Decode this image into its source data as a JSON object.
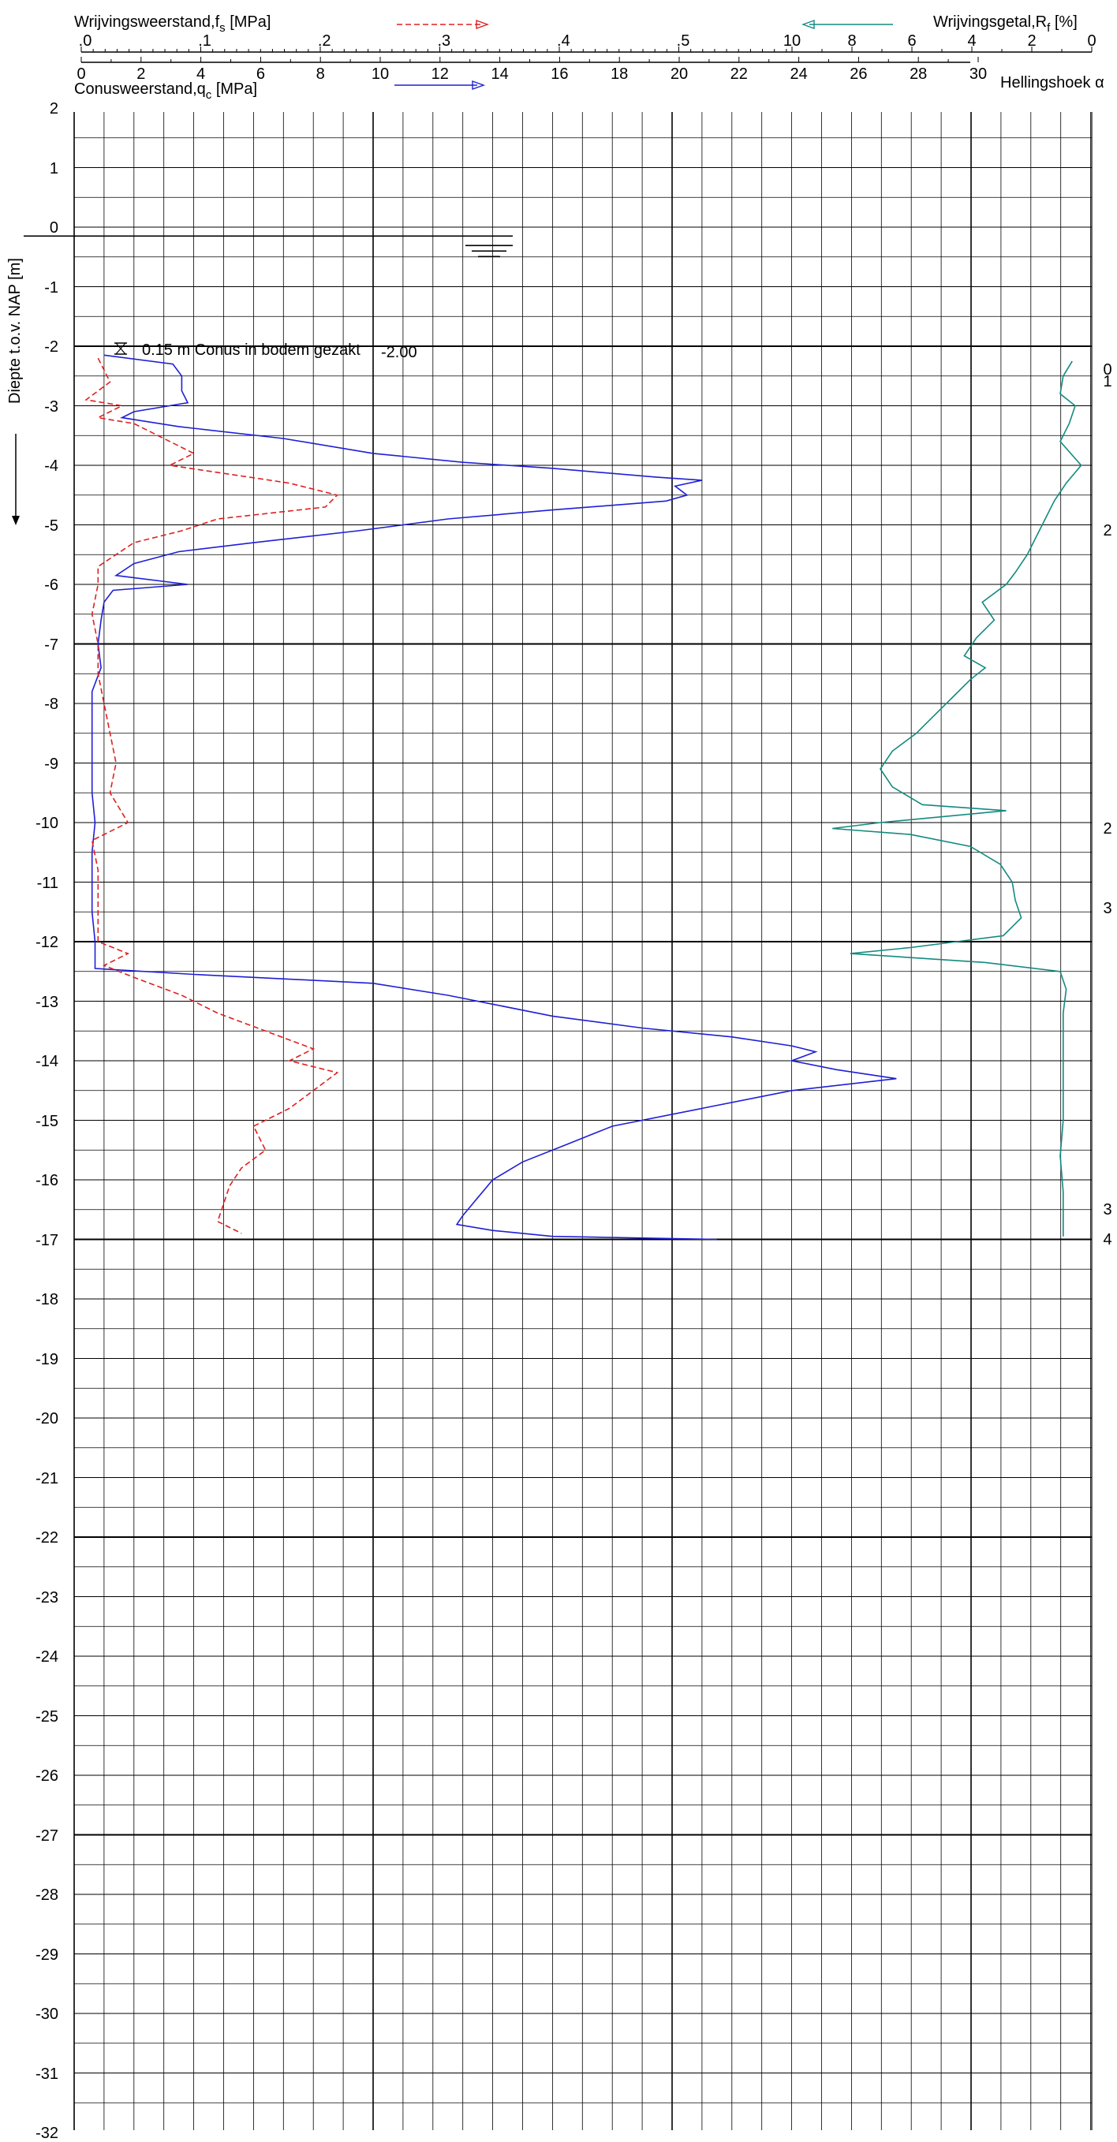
{
  "chart_data": {
    "type": "line",
    "y_axis": {
      "label": "Diepte t.o.v. NAP [m]",
      "range": [
        -32,
        2
      ],
      "ticks": [
        2,
        1,
        0,
        -1,
        -2,
        -3,
        -4,
        -5,
        -6,
        -7,
        -8,
        -9,
        -10,
        -11,
        -12,
        -13,
        -14,
        -15,
        -16,
        -17,
        -18,
        -19,
        -20,
        -21,
        -22,
        -23,
        -24,
        -25,
        -26,
        -27,
        -28,
        -29,
        -30,
        -31,
        -32
      ]
    },
    "x_axis_qc": {
      "label": "Conusweerstand,q",
      "label_sub": "c",
      "unit": " [MPa]",
      "range": [
        0,
        34
      ],
      "ticks": [
        0,
        2,
        4,
        6,
        8,
        10,
        12,
        14,
        16,
        18,
        20,
        22,
        24,
        26,
        28,
        30
      ]
    },
    "x_axis_fs": {
      "label": "Wrijvingsweerstand,f",
      "label_sub": "s",
      "unit": " [MPa]",
      "range": [
        0,
        0.85
      ],
      "ticks": [
        ".0",
        ".1",
        ".2",
        ".3",
        ".4",
        ".5"
      ],
      "tick_values": [
        0,
        0.1,
        0.2,
        0.3,
        0.4,
        0.5
      ]
    },
    "x_axis_rf": {
      "label": "Wrijvingsgetal,R",
      "label_sub": "f",
      "unit": " [%]",
      "range_reversed": [
        0,
        10
      ],
      "ticks": [
        "10",
        "8",
        "6",
        "4",
        "2",
        "0"
      ],
      "tick_values": [
        10,
        8,
        6,
        4,
        2,
        0
      ]
    },
    "angle_label": "Hellingshoek α",
    "groundwater_level": -0.15,
    "annotation": {
      "text": "0.15  m Conus in bodem gezakt",
      "value_text": "-2.00",
      "depth": -2.0
    },
    "angle_markers": [
      {
        "depth": -2.4,
        "value": "0"
      },
      {
        "depth": -2.6,
        "value": "1"
      },
      {
        "depth": -5.1,
        "value": "2"
      },
      {
        "depth": -10.1,
        "value": "2"
      },
      {
        "depth": -11.45,
        "value": "3"
      },
      {
        "depth": -16.5,
        "value": "3"
      },
      {
        "depth": -17.0,
        "value": "4"
      }
    ],
    "series": [
      {
        "name": "Conusweerstand q_c",
        "color": "#1f1fd6",
        "style": "solid",
        "axis": "qc",
        "points": [
          [
            -2.15,
            1.0
          ],
          [
            -2.3,
            3.3
          ],
          [
            -2.5,
            3.6
          ],
          [
            -2.75,
            3.6
          ],
          [
            -2.95,
            3.8
          ],
          [
            -3.1,
            2.0
          ],
          [
            -3.2,
            1.6
          ],
          [
            -3.35,
            3.5
          ],
          [
            -3.55,
            7.0
          ],
          [
            -3.8,
            10.0
          ],
          [
            -3.95,
            13.0
          ],
          [
            -4.05,
            16.0
          ],
          [
            -4.2,
            19.5
          ],
          [
            -4.25,
            21.0
          ],
          [
            -4.35,
            20.1
          ],
          [
            -4.5,
            20.5
          ],
          [
            -4.6,
            19.8
          ],
          [
            -4.75,
            16.0
          ],
          [
            -4.9,
            12.5
          ],
          [
            -5.1,
            9.5
          ],
          [
            -5.3,
            6.0
          ],
          [
            -5.45,
            3.5
          ],
          [
            -5.65,
            2.0
          ],
          [
            -5.85,
            1.4
          ],
          [
            -6.0,
            3.8
          ],
          [
            -6.1,
            1.3
          ],
          [
            -6.3,
            1.0
          ],
          [
            -6.6,
            0.9
          ],
          [
            -7.0,
            0.8
          ],
          [
            -7.4,
            0.9
          ],
          [
            -7.8,
            0.6
          ],
          [
            -8.3,
            0.6
          ],
          [
            -9.0,
            0.6
          ],
          [
            -9.5,
            0.6
          ],
          [
            -10.0,
            0.7
          ],
          [
            -10.5,
            0.6
          ],
          [
            -11.0,
            0.6
          ],
          [
            -11.5,
            0.6
          ],
          [
            -12.0,
            0.7
          ],
          [
            -12.45,
            0.7
          ],
          [
            -12.55,
            4.0
          ],
          [
            -12.7,
            10.0
          ],
          [
            -12.9,
            12.5
          ],
          [
            -13.05,
            14.0
          ],
          [
            -13.25,
            16.0
          ],
          [
            -13.45,
            19.0
          ],
          [
            -13.6,
            22.0
          ],
          [
            -13.75,
            24.0
          ],
          [
            -13.85,
            24.8
          ],
          [
            -14.0,
            24.0
          ],
          [
            -14.15,
            25.5
          ],
          [
            -14.3,
            27.5
          ],
          [
            -14.5,
            24.0
          ],
          [
            -14.8,
            21.0
          ],
          [
            -15.1,
            18.0
          ],
          [
            -15.4,
            16.5
          ],
          [
            -15.7,
            15.0
          ],
          [
            -16.0,
            14.0
          ],
          [
            -16.3,
            13.5
          ],
          [
            -16.6,
            13.0
          ],
          [
            -16.75,
            12.8
          ],
          [
            -16.85,
            14.0
          ],
          [
            -16.95,
            16.0
          ],
          [
            -17.0,
            21.5
          ]
        ]
      },
      {
        "name": "Wrijvingsweerstand f_s",
        "color": "#e02020",
        "style": "dashed",
        "axis": "fs",
        "points": [
          [
            -2.2,
            0.02
          ],
          [
            -2.6,
            0.03
          ],
          [
            -2.9,
            0.01
          ],
          [
            -3.0,
            0.04
          ],
          [
            -3.2,
            0.02
          ],
          [
            -3.3,
            0.05
          ],
          [
            -3.6,
            0.08
          ],
          [
            -3.8,
            0.1
          ],
          [
            -4.0,
            0.08
          ],
          [
            -4.3,
            0.18
          ],
          [
            -4.5,
            0.22
          ],
          [
            -4.7,
            0.21
          ],
          [
            -4.9,
            0.12
          ],
          [
            -5.1,
            0.09
          ],
          [
            -5.3,
            0.05
          ],
          [
            -5.7,
            0.02
          ],
          [
            -6.0,
            0.02
          ],
          [
            -6.5,
            0.015
          ],
          [
            -7.0,
            0.02
          ],
          [
            -7.5,
            0.02
          ],
          [
            -8.0,
            0.025
          ],
          [
            -8.5,
            0.03
          ],
          [
            -9.0,
            0.035
          ],
          [
            -9.5,
            0.03
          ],
          [
            -10.0,
            0.045
          ],
          [
            -10.3,
            0.015
          ],
          [
            -10.8,
            0.02
          ],
          [
            -11.5,
            0.02
          ],
          [
            -12.0,
            0.02
          ],
          [
            -12.2,
            0.045
          ],
          [
            -12.4,
            0.025
          ],
          [
            -12.6,
            0.05
          ],
          [
            -12.9,
            0.09
          ],
          [
            -13.2,
            0.12
          ],
          [
            -13.5,
            0.16
          ],
          [
            -13.8,
            0.2
          ],
          [
            -14.0,
            0.18
          ],
          [
            -14.2,
            0.22
          ],
          [
            -14.5,
            0.2
          ],
          [
            -14.8,
            0.18
          ],
          [
            -15.1,
            0.15
          ],
          [
            -15.5,
            0.16
          ],
          [
            -15.8,
            0.14
          ],
          [
            -16.1,
            0.13
          ],
          [
            -16.4,
            0.125
          ],
          [
            -16.7,
            0.12
          ],
          [
            -16.9,
            0.14
          ]
        ]
      },
      {
        "name": "Wrijvingsgetal R_f",
        "color": "#138a80",
        "style": "solid",
        "axis": "rf",
        "points": [
          [
            -2.25,
            0.6
          ],
          [
            -2.5,
            0.9
          ],
          [
            -2.8,
            1.0
          ],
          [
            -3.0,
            0.5
          ],
          [
            -3.3,
            0.7
          ],
          [
            -3.6,
            1.0
          ],
          [
            -4.0,
            0.3
          ],
          [
            -4.3,
            0.8
          ],
          [
            -4.6,
            1.2
          ],
          [
            -4.9,
            1.5
          ],
          [
            -5.2,
            1.8
          ],
          [
            -5.5,
            2.1
          ],
          [
            -5.8,
            2.5
          ],
          [
            -6.0,
            2.8
          ],
          [
            -6.3,
            3.6
          ],
          [
            -6.6,
            3.2
          ],
          [
            -6.9,
            3.8
          ],
          [
            -7.2,
            4.2
          ],
          [
            -7.4,
            3.5
          ],
          [
            -7.6,
            4.0
          ],
          [
            -7.9,
            4.6
          ],
          [
            -8.2,
            5.2
          ],
          [
            -8.5,
            5.8
          ],
          [
            -8.8,
            6.6
          ],
          [
            -9.1,
            7.0
          ],
          [
            -9.4,
            6.6
          ],
          [
            -9.7,
            5.6
          ],
          [
            -9.8,
            2.8
          ],
          [
            -10.0,
            7.0
          ],
          [
            -10.1,
            8.6
          ],
          [
            -10.2,
            6.0
          ],
          [
            -10.4,
            4.0
          ],
          [
            -10.7,
            3.0
          ],
          [
            -11.0,
            2.6
          ],
          [
            -11.3,
            2.5
          ],
          [
            -11.6,
            2.3
          ],
          [
            -11.9,
            2.9
          ],
          [
            -12.1,
            6.0
          ],
          [
            -12.2,
            8.0
          ],
          [
            -12.35,
            3.5
          ],
          [
            -12.5,
            1.0
          ],
          [
            -12.8,
            0.8
          ],
          [
            -13.2,
            0.9
          ],
          [
            -13.8,
            0.9
          ],
          [
            -14.4,
            0.9
          ],
          [
            -15.0,
            0.9
          ],
          [
            -15.6,
            1.0
          ],
          [
            -16.2,
            0.9
          ],
          [
            -16.8,
            0.9
          ],
          [
            -16.95,
            0.9
          ]
        ]
      }
    ]
  }
}
